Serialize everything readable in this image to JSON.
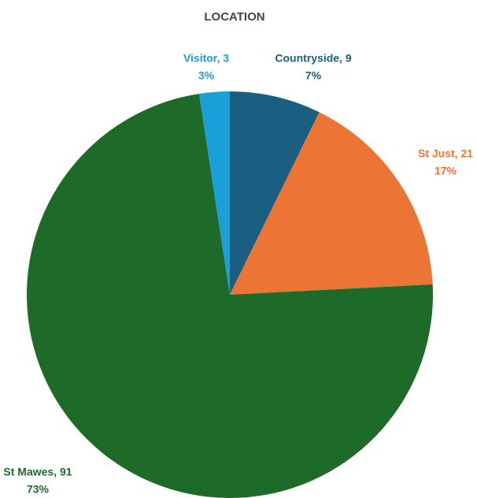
{
  "chart_data": {
    "type": "pie",
    "title": "LOCATION",
    "values": [
      9,
      21,
      91,
      3
    ],
    "value_labels": [
      "Countryside, 9",
      "St Just, 21",
      "St Mawes, 91",
      "Visitor, 3"
    ],
    "percent_labels": [
      "7%",
      "17%",
      "73%",
      "3%"
    ],
    "colors": [
      "#1a5e82",
      "#ec7434",
      "#1e6b29",
      "#1aa0d9"
    ]
  }
}
